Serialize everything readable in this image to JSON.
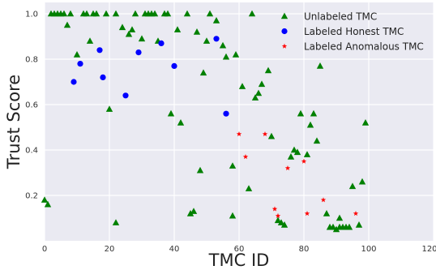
{
  "chart_data": {
    "type": "scatter",
    "xlabel": "TMC ID",
    "ylabel": "Trust Score",
    "xlim": [
      0,
      120
    ],
    "ylim": [
      0,
      1.05
    ],
    "x_ticks": [
      0,
      20,
      40,
      60,
      80,
      100,
      120
    ],
    "x_tick_labels": [
      "0",
      "20",
      "40",
      "60",
      "80",
      "100",
      "120"
    ],
    "y_ticks": [
      0.2,
      0.4,
      0.6,
      0.8,
      1.0
    ],
    "y_tick_labels": [
      "0.2",
      "0.4",
      "0.6",
      "0.8",
      "1.0"
    ],
    "grid": true,
    "background": "#eaeaf2",
    "legend_position": "top-right",
    "series": [
      {
        "name": "Unlabeled TMC",
        "marker": "triangle",
        "color": "#008000",
        "points": [
          [
            0,
            0.18
          ],
          [
            1,
            0.16
          ],
          [
            2,
            1.0
          ],
          [
            3,
            1.0
          ],
          [
            4,
            1.0
          ],
          [
            5,
            1.0
          ],
          [
            6,
            1.0
          ],
          [
            7,
            0.95
          ],
          [
            8,
            1.0
          ],
          [
            10,
            0.82
          ],
          [
            12,
            1.0
          ],
          [
            13,
            1.0
          ],
          [
            14,
            0.88
          ],
          [
            15,
            1.0
          ],
          [
            16,
            1.0
          ],
          [
            19,
            1.0
          ],
          [
            20,
            0.58
          ],
          [
            22,
            1.0
          ],
          [
            22,
            0.08
          ],
          [
            24,
            0.94
          ],
          [
            26,
            0.91
          ],
          [
            27,
            0.93
          ],
          [
            28,
            1.0
          ],
          [
            30,
            0.89
          ],
          [
            31,
            1.0
          ],
          [
            32,
            1.0
          ],
          [
            33,
            1.0
          ],
          [
            34,
            1.0
          ],
          [
            35,
            0.88
          ],
          [
            37,
            1.0
          ],
          [
            38,
            1.0
          ],
          [
            39,
            0.56
          ],
          [
            41,
            0.93
          ],
          [
            42,
            0.52
          ],
          [
            44,
            1.0
          ],
          [
            45,
            0.12
          ],
          [
            46,
            0.13
          ],
          [
            47,
            0.92
          ],
          [
            48,
            0.31
          ],
          [
            49,
            0.74
          ],
          [
            50,
            0.88
          ],
          [
            51,
            1.0
          ],
          [
            53,
            0.97
          ],
          [
            55,
            0.86
          ],
          [
            56,
            0.81
          ],
          [
            58,
            0.11
          ],
          [
            58,
            0.33
          ],
          [
            59,
            0.82
          ],
          [
            61,
            0.68
          ],
          [
            63,
            0.23
          ],
          [
            64,
            1.0
          ],
          [
            65,
            0.63
          ],
          [
            66,
            0.65
          ],
          [
            67,
            0.69
          ],
          [
            69,
            0.75
          ],
          [
            70,
            0.46
          ],
          [
            72,
            0.09
          ],
          [
            73,
            0.08
          ],
          [
            74,
            0.07
          ],
          [
            76,
            0.37
          ],
          [
            77,
            0.4
          ],
          [
            78,
            0.39
          ],
          [
            79,
            0.56
          ],
          [
            81,
            0.38
          ],
          [
            82,
            0.51
          ],
          [
            83,
            0.56
          ],
          [
            84,
            0.44
          ],
          [
            85,
            0.77
          ],
          [
            87,
            0.12
          ],
          [
            88,
            0.06
          ],
          [
            89,
            0.06
          ],
          [
            90,
            0.05
          ],
          [
            91,
            0.06
          ],
          [
            91,
            0.1
          ],
          [
            92,
            0.06
          ],
          [
            93,
            0.06
          ],
          [
            94,
            0.06
          ],
          [
            95,
            0.24
          ],
          [
            97,
            0.07
          ],
          [
            98,
            0.26
          ],
          [
            99,
            0.52
          ]
        ]
      },
      {
        "name": "Labeled Honest TMC",
        "marker": "circle",
        "color": "#0000ff",
        "points": [
          [
            9,
            0.7
          ],
          [
            11,
            0.78
          ],
          [
            17,
            0.84
          ],
          [
            18,
            0.72
          ],
          [
            25,
            0.64
          ],
          [
            29,
            0.83
          ],
          [
            36,
            0.87
          ],
          [
            40,
            0.77
          ],
          [
            53,
            0.89
          ],
          [
            56,
            0.56
          ]
        ]
      },
      {
        "name": "Labeled Anomalous TMC",
        "marker": "star",
        "color": "#ff0000",
        "points": [
          [
            60,
            0.47
          ],
          [
            62,
            0.37
          ],
          [
            68,
            0.47
          ],
          [
            71,
            0.14
          ],
          [
            72,
            0.11
          ],
          [
            75,
            0.32
          ],
          [
            80,
            0.35
          ],
          [
            81,
            0.12
          ],
          [
            86,
            0.18
          ],
          [
            96,
            0.12
          ]
        ]
      }
    ]
  }
}
